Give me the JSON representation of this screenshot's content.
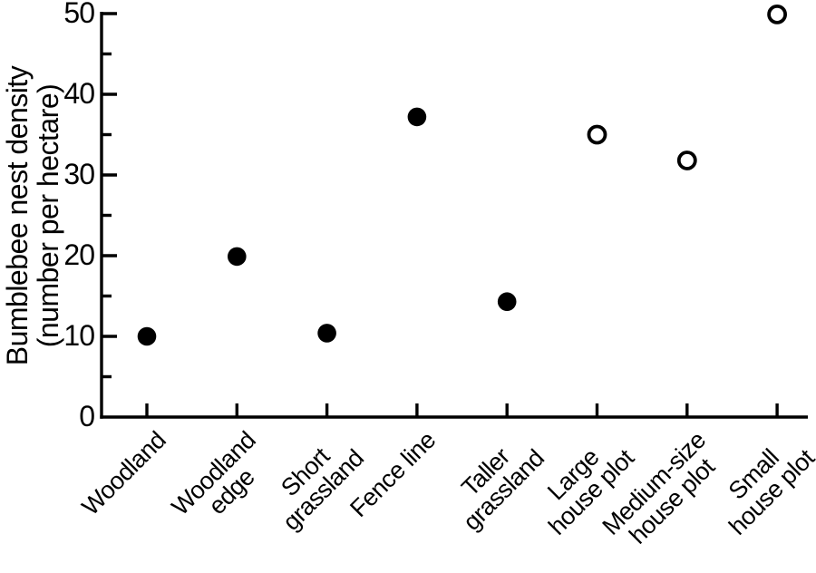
{
  "chart_data": {
    "type": "scatter",
    "title": "",
    "xlabel": "",
    "ylabel": "Bumblebee nest density\n(number per hectare)",
    "ylim": [
      0,
      50
    ],
    "yticks_major": [
      0,
      10,
      20,
      30,
      40,
      50
    ],
    "yticks_minor": [
      5,
      15,
      25,
      35,
      45
    ],
    "grid": false,
    "legend": "none",
    "x_tick_rotation_deg": 45,
    "marker_shape": "circle",
    "categories": [
      "Woodland",
      "Woodland edge",
      "Short grassland",
      "Fence line",
      "Taller grassland",
      "Large house plot",
      "Medium-size house plot",
      "Small house plot"
    ],
    "points": [
      {
        "category": "Woodland",
        "label": "Woodland",
        "value": 10.0,
        "marker": "filled"
      },
      {
        "category": "Woodland edge",
        "label": "Woodland\nedge",
        "value": 19.9,
        "marker": "filled"
      },
      {
        "category": "Short grassland",
        "label": "Short\ngrassland",
        "value": 10.4,
        "marker": "filled"
      },
      {
        "category": "Fence line",
        "label": "Fence line",
        "value": 37.2,
        "marker": "filled"
      },
      {
        "category": "Taller grassland",
        "label": "Taller\ngrassland",
        "value": 14.3,
        "marker": "filled"
      },
      {
        "category": "Large house plot",
        "label": "Large\nhouse plot",
        "value": 35.0,
        "marker": "open"
      },
      {
        "category": "Medium-size house plot",
        "label": "Medium-size\nhouse plot",
        "value": 31.8,
        "marker": "open"
      },
      {
        "category": "Small house plot",
        "label": "Small\nhouse plot",
        "value": 49.9,
        "marker": "open"
      }
    ],
    "colors": {
      "axis": "#000000",
      "text": "#000000",
      "filled_marker": "#000000",
      "open_marker_fill": "#ffffff",
      "open_marker_stroke": "#000000",
      "background": "#ffffff"
    }
  }
}
